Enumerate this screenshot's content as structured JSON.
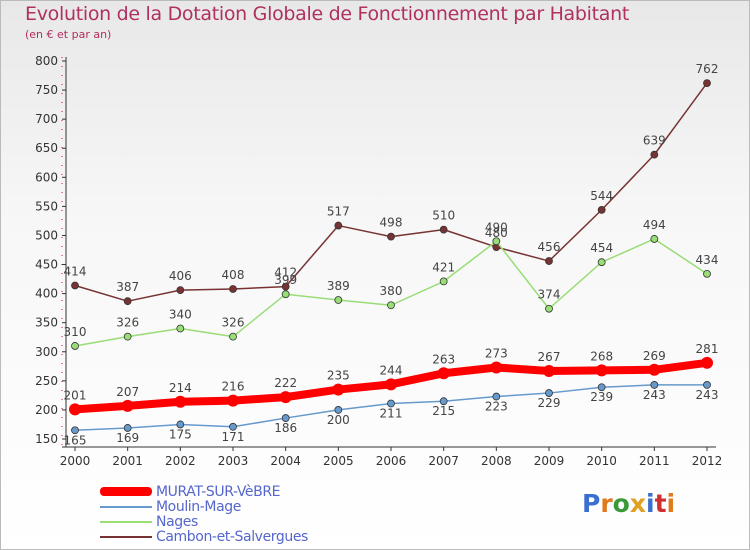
{
  "title": "Evolution de la Dotation Globale de Fonctionnement par Habitant",
  "subtitle": "(en € et par an)",
  "logo": {
    "text": "Proxiti",
    "colors": [
      "#3a6fd0",
      "#e07a1f",
      "#3a9a3a",
      "#e0a020",
      "#3a6fd0",
      "#d03030",
      "#e07a1f"
    ]
  },
  "chart_data": {
    "type": "line",
    "x": [
      "2000",
      "2001",
      "2002",
      "2003",
      "2004",
      "2005",
      "2006",
      "2007",
      "2008",
      "2009",
      "2010",
      "2011",
      "2012"
    ],
    "ylim": [
      150,
      800
    ],
    "yticks": [
      "150",
      "200",
      "250",
      "300",
      "350",
      "400",
      "450",
      "500",
      "550",
      "600",
      "650",
      "700",
      "750",
      "800"
    ],
    "grid": false,
    "legend": "bottom-left",
    "series": [
      {
        "name": "MURAT-SUR-VèBRE",
        "color": "#ff0000",
        "values": [
          201,
          207,
          214,
          216,
          222,
          235,
          244,
          263,
          273,
          267,
          268,
          269,
          281
        ],
        "labels": [
          "201",
          "207",
          "214",
          "216",
          "222",
          "235",
          "244",
          "263",
          "273",
          "267",
          "268",
          "269",
          "281"
        ]
      },
      {
        "name": "Moulin-Mage",
        "color": "#6699cc",
        "values": [
          165,
          169,
          175,
          171,
          186,
          200,
          211,
          215,
          223,
          229,
          239,
          243,
          243
        ],
        "labels": [
          "165",
          "169",
          "175",
          "171",
          "186",
          "200",
          "211",
          "215",
          "223",
          "229",
          "239",
          "243",
          "243"
        ]
      },
      {
        "name": "Nages",
        "color": "#99dd77",
        "values": [
          310,
          326,
          340,
          326,
          399,
          389,
          380,
          421,
          490,
          374,
          454,
          494,
          434
        ],
        "labels": [
          "310",
          "326",
          "340",
          "326",
          "399",
          "389",
          "380",
          "421",
          "490",
          "374",
          "454",
          "494",
          "434"
        ]
      },
      {
        "name": "Cambon-et-Salvergues",
        "color": "#773333",
        "values": [
          414,
          387,
          406,
          408,
          412,
          517,
          498,
          510,
          480,
          456,
          544,
          639,
          762
        ],
        "labels": [
          "414",
          "387",
          "406",
          "408",
          "412",
          "517",
          "498",
          "510",
          "480",
          "456",
          "544",
          "639",
          "762"
        ]
      }
    ]
  }
}
